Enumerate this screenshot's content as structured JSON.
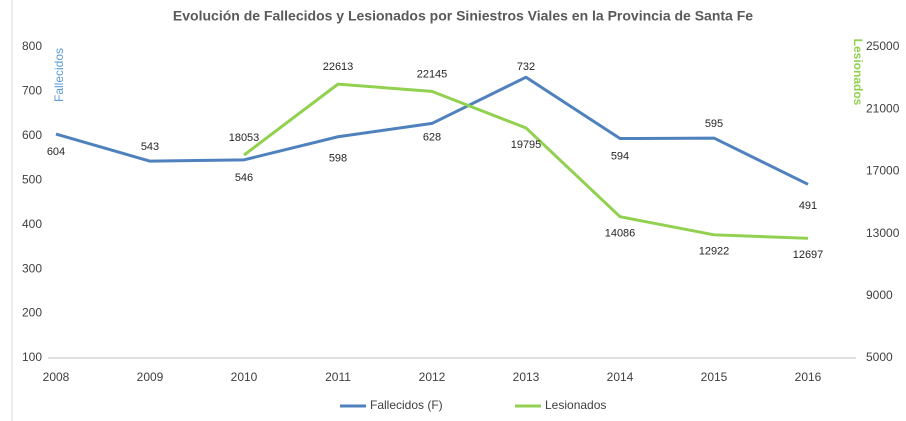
{
  "chart_data": {
    "type": "line",
    "title": "Evolución de Fallecidos y Lesionados por Siniestros Viales en la Provincia de Santa Fe",
    "ylabel": "Fallecidos",
    "y2label": "Lesionados",
    "categories": [
      "2008",
      "2009",
      "2010",
      "2011",
      "2012",
      "2013",
      "2014",
      "2015",
      "2016"
    ],
    "series": [
      {
        "name": "Fallecidos (F)",
        "color": "#4f81bd",
        "values": [
          604,
          543,
          546,
          598,
          628,
          732,
          594,
          595,
          491
        ]
      },
      {
        "name": "Lesionados",
        "color": "#92d050",
        "axis": "y2",
        "values": [
          null,
          null,
          18053,
          22613,
          22145,
          19795,
          14086,
          12922,
          12697
        ]
      }
    ],
    "ylim": [
      100,
      800
    ],
    "yticks": [
      100,
      200,
      300,
      400,
      500,
      600,
      700,
      800
    ],
    "y2lim": [
      5000,
      25000
    ],
    "y2ticks": [
      5000,
      9000,
      13000,
      17000,
      21000,
      25000
    ],
    "legend": "bottom"
  }
}
